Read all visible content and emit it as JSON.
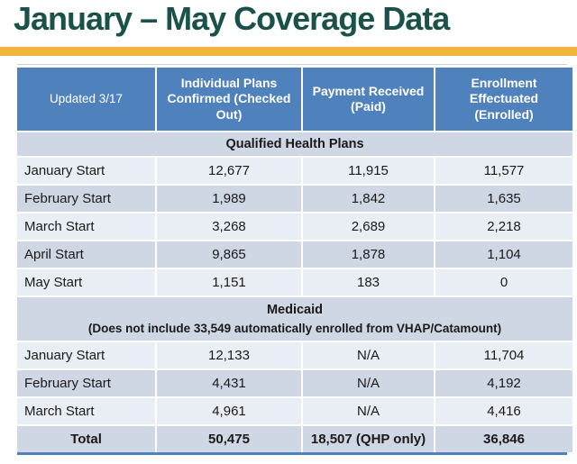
{
  "title": "January – May Coverage Data",
  "accent": {
    "title_color": "#1A5148",
    "bar_color": "#EEB43C",
    "header_bg": "#4F81BD",
    "band_light": "#E9EDF4",
    "band_dark": "#CFD6E4"
  },
  "table": {
    "updated_label": "Updated 3/17",
    "columns": [
      "Individual Plans Confirmed (Checked Out)",
      "Payment Received (Paid)",
      "Enrollment Effectuated (Enrolled)"
    ],
    "sections": [
      {
        "header": "Qualified Health Plans",
        "rows": [
          {
            "label": "January Start",
            "values": [
              "12,677",
              "11,915",
              "11,577"
            ]
          },
          {
            "label": "February Start",
            "values": [
              "1,989",
              "1,842",
              "1,635"
            ]
          },
          {
            "label": "March Start",
            "values": [
              "3,268",
              "2,689",
              "2,218"
            ]
          },
          {
            "label": "April Start",
            "values": [
              "9,865",
              "1,878",
              "1,104"
            ]
          },
          {
            "label": "May Start",
            "values": [
              "1,151",
              "183",
              "0"
            ]
          }
        ]
      },
      {
        "header": "Medicaid",
        "note": "(Does not include 33,549 automatically enrolled from VHAP/Catamount)",
        "rows": [
          {
            "label": "January Start",
            "values": [
              "12,133",
              "N/A",
              "11,704"
            ]
          },
          {
            "label": "February Start",
            "values": [
              "4,431",
              "N/A",
              "4,192"
            ]
          },
          {
            "label": "March Start",
            "values": [
              "4,961",
              "N/A",
              "4,416"
            ]
          }
        ]
      }
    ],
    "total": {
      "label": "Total",
      "values": [
        "50,475",
        "18,507 (QHP only)",
        "36,846"
      ]
    }
  }
}
